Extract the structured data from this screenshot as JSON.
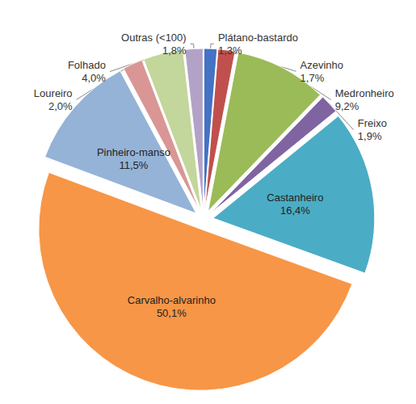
{
  "chart_data": {
    "type": "pie",
    "categories": [
      "Plátano-bastardo",
      "Azevinho",
      "Medronheiro",
      "Freixo",
      "Castanheiro",
      "Carvalho-alvarinho",
      "Pinheiro-manso",
      "Loureiro",
      "Folhado",
      "Outras (<100)"
    ],
    "values": [
      1.3,
      1.7,
      9.2,
      1.9,
      16.4,
      50.1,
      11.5,
      2.0,
      4.0,
      1.8
    ],
    "value_labels": [
      "1,3%",
      "1,7%",
      "9,2%",
      "1,9%",
      "16,4%",
      "50,1%",
      "11,5%",
      "2,0%",
      "4,0%",
      "1,8%"
    ],
    "colors": [
      "#4472c4",
      "#c0504d",
      "#9bbb59",
      "#8064a2",
      "#4bacc6",
      "#f79646",
      "#95b3d7",
      "#d99694",
      "#c3d69b",
      "#b3a2c7"
    ],
    "data_labels": true
  }
}
